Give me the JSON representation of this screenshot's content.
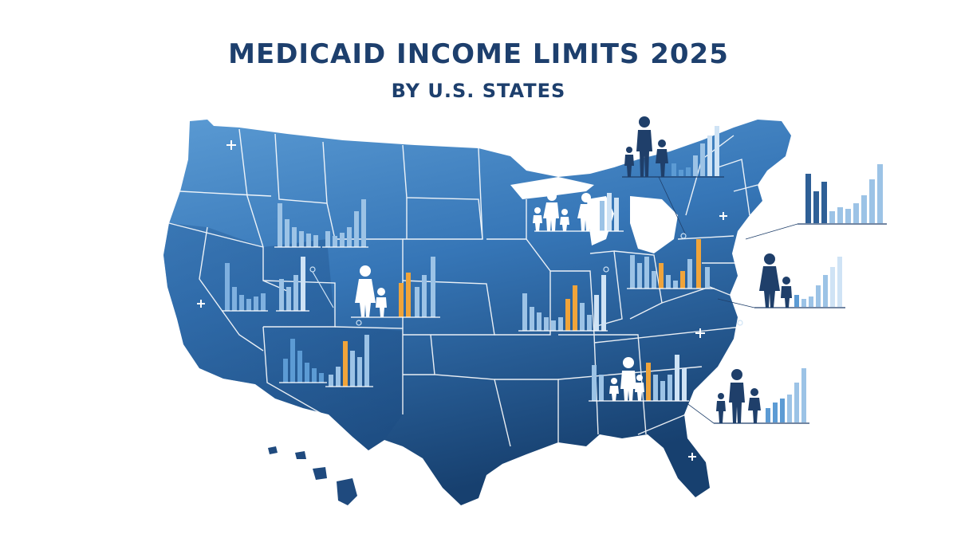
{
  "header": {
    "title": "MEDICAID INCOME LIMITS 2025",
    "subtitle": "BY U.S. STATES"
  },
  "colors": {
    "map_light": "#4a8ccb",
    "map_dark": "#1c4a80",
    "border": "#ffffff",
    "bar_light": "#9cc3e6",
    "bar_mid": "#5c9bd4",
    "bar_dark": "#2e5f96",
    "bar_accent": "#f0a43a",
    "figure": "#1f3f6a",
    "figure_light": "#ffffff"
  },
  "icons": [
    "family-icon",
    "mother-child-icon",
    "sparkle-icon",
    "pin-dot-icon"
  ]
}
